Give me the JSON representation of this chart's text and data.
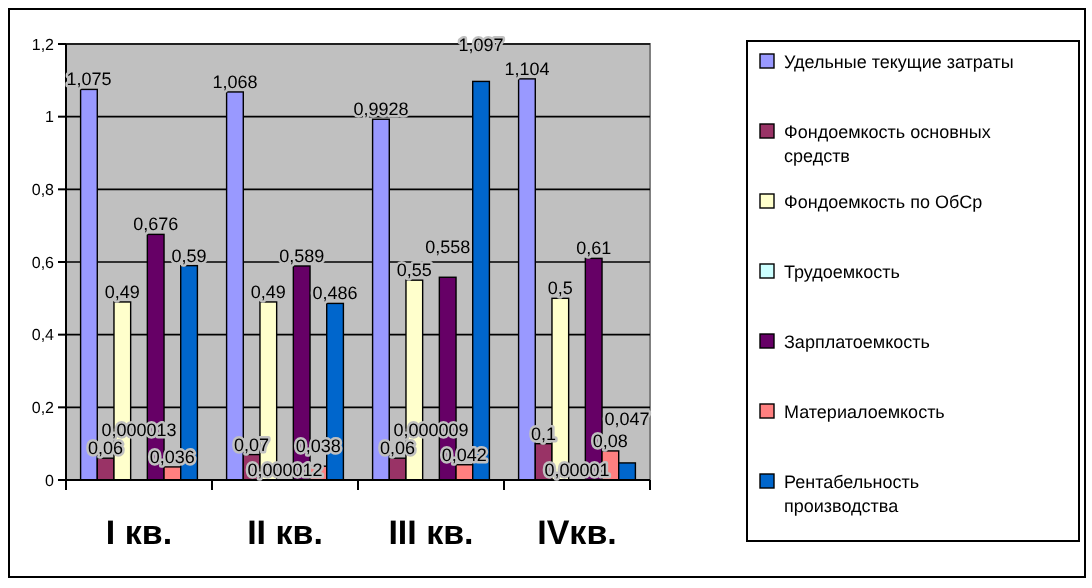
{
  "chart_data": {
    "type": "bar",
    "categories": [
      "I кв.",
      "II кв.",
      "III кв.",
      "IVкв."
    ],
    "ylim": [
      0,
      1.2
    ],
    "yticks": [
      0,
      {
        "value": 0.2,
        "label": "0,2"
      },
      {
        "value": 0.4,
        "label": "0,4"
      },
      {
        "value": 0.6,
        "label": "0,6"
      },
      {
        "value": 0.8,
        "label": "0,8"
      },
      1,
      {
        "value": 1.2,
        "label": "1,2"
      }
    ],
    "grid": "y",
    "legend": "right",
    "series": [
      {
        "name": "Удельные текущие затраты",
        "color": "#9999ff",
        "values": [
          1.075,
          1.068,
          0.9928,
          1.104
        ],
        "value_labels": [
          "1,075",
          "1,068",
          "0,9928",
          "1,104"
        ]
      },
      {
        "name": "Фондоемкость основных средств",
        "color": "#993366",
        "values": [
          0.06,
          0.07,
          0.06,
          0.1
        ],
        "value_labels": [
          "0,06",
          "0,07",
          "0,06",
          "0,1"
        ]
      },
      {
        "name": "Фондоемкость по ОбСр",
        "color": "#ffffcc",
        "values": [
          0.49,
          0.49,
          0.55,
          0.5
        ],
        "value_labels": [
          "0,49",
          "0,49",
          "0,55",
          "0,5"
        ]
      },
      {
        "name": "Трудоемкость",
        "color": "#ccffff",
        "values": [
          1.3e-05,
          1.2e-05,
          9e-06,
          1e-05
        ],
        "value_labels": [
          "0,000013",
          "0,000012",
          "0,000009",
          "0,00001"
        ]
      },
      {
        "name": "Зарплатоемкость",
        "color": "#660066",
        "values": [
          0.676,
          0.589,
          0.558,
          0.61
        ],
        "value_labels": [
          "0,676",
          "0,589",
          "0,558",
          "0,61"
        ]
      },
      {
        "name": "Материалоемкость",
        "color": "#ff8080",
        "values": [
          0.036,
          0.038,
          0.042,
          0.08
        ],
        "value_labels": [
          "0,036",
          "0,038",
          "0,042",
          "0,08"
        ]
      },
      {
        "name": "Рентабельность производства",
        "color": "#0066cc",
        "values": [
          0.59,
          0.486,
          1.097,
          0.047
        ],
        "value_labels": [
          "0,59",
          "0,486",
          "1,097",
          "0,047"
        ]
      }
    ]
  }
}
